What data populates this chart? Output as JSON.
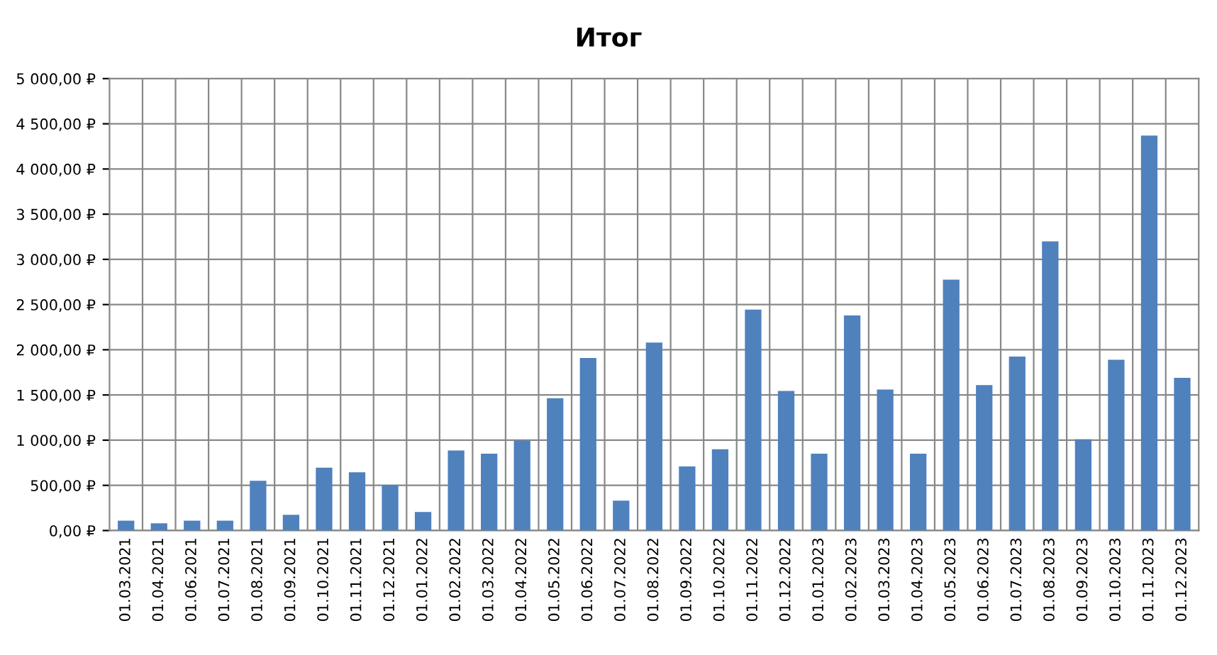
{
  "chart_data": {
    "type": "bar",
    "title": "Итог",
    "categories": [
      "01.03.2021",
      "01.04.2021",
      "01.06.2021",
      "01.07.2021",
      "01.08.2021",
      "01.09.2021",
      "01.10.2021",
      "01.11.2021",
      "01.12.2021",
      "01.01.2022",
      "01.02.2022",
      "01.03.2022",
      "01.04.2022",
      "01.05.2022",
      "01.06.2022",
      "01.07.2022",
      "01.08.2022",
      "01.09.2022",
      "01.10.2022",
      "01.11.2022",
      "01.12.2022",
      "01.01.2023",
      "01.02.2023",
      "01.03.2023",
      "01.04.2023",
      "01.05.2023",
      "01.06.2023",
      "01.07.2023",
      "01.08.2023",
      "01.09.2023",
      "01.10.2023",
      "01.11.2023",
      "01.12.2023"
    ],
    "values": [
      110,
      80,
      110,
      110,
      550,
      175,
      695,
      645,
      505,
      205,
      885,
      850,
      995,
      1465,
      1910,
      330,
      2080,
      710,
      900,
      2445,
      1545,
      850,
      2380,
      1560,
      850,
      2775,
      1610,
      1925,
      3200,
      1010,
      1890,
      4370,
      1690
    ],
    "color": "#4f81bd",
    "ylim": [
      0,
      5000
    ],
    "yticks": [
      {
        "value": 0,
        "label": "0,00 ₽"
      },
      {
        "value": 500,
        "label": "500,00 ₽"
      },
      {
        "value": 1000,
        "label": "1 000,00 ₽"
      },
      {
        "value": 1500,
        "label": "1 500,00 ₽"
      },
      {
        "value": 2000,
        "label": "2 000,00 ₽"
      },
      {
        "value": 2500,
        "label": "2 500,00 ₽"
      },
      {
        "value": 3000,
        "label": "3 000,00 ₽"
      },
      {
        "value": 3500,
        "label": "3 500,00 ₽"
      },
      {
        "value": 4000,
        "label": "4 000,00 ₽"
      },
      {
        "value": 4500,
        "label": "4 500,00 ₽"
      },
      {
        "value": 5000,
        "label": "5 000,00 ₽"
      }
    ],
    "grid": true
  }
}
